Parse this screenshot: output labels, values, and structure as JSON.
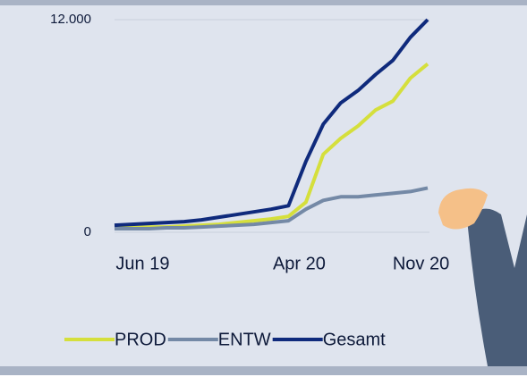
{
  "chart_data": {
    "type": "line",
    "categories": [
      null,
      "Jun 19",
      null,
      null,
      null,
      null,
      null,
      null,
      null,
      null,
      "Apr 20",
      null,
      null,
      null,
      null,
      null,
      null,
      "Nov 20",
      null
    ],
    "series": [
      {
        "name": "PROD",
        "color": "#d5df3c",
        "values": [
          250,
          250,
          300,
          300,
          350,
          400,
          450,
          550,
          650,
          750,
          900,
          1700,
          4400,
          5300,
          6000,
          6900,
          7400,
          8700,
          9500
        ]
      },
      {
        "name": "ENTW",
        "color": "#7489a6",
        "values": [
          200,
          200,
          200,
          250,
          250,
          300,
          350,
          400,
          450,
          550,
          650,
          1300,
          1800,
          2000,
          2000,
          2100,
          2200,
          2300,
          2500
        ]
      },
      {
        "name": "Gesamt",
        "color": "#0f2a7c",
        "values": [
          400,
          450,
          500,
          550,
          600,
          700,
          850,
          1000,
          1150,
          1300,
          1500,
          4000,
          6100,
          7300,
          8000,
          8900,
          9700,
          11000,
          12000
        ]
      }
    ],
    "ylim": [
      0,
      12000
    ],
    "yticks": [
      0,
      {
        "value": 12000,
        "label": "12.000"
      }
    ]
  }
}
